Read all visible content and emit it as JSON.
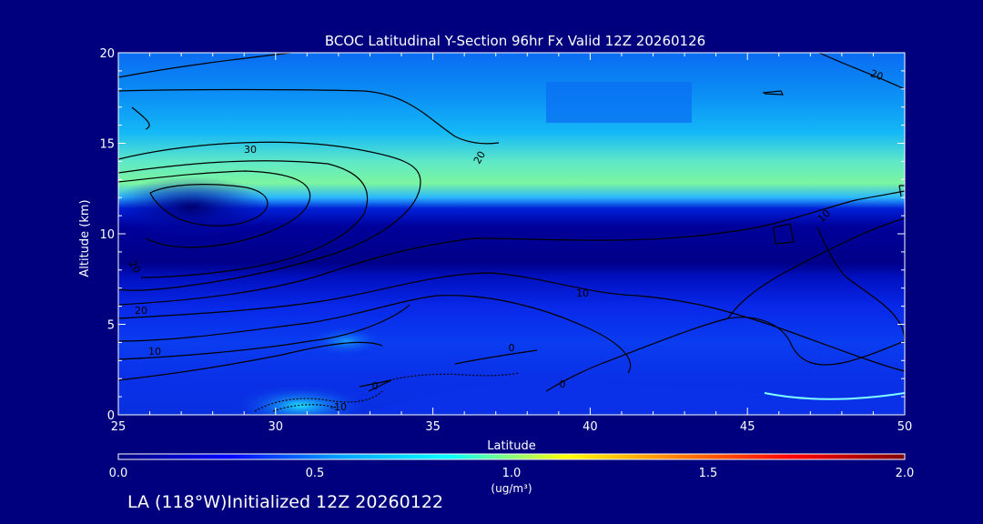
{
  "chart_data": {
    "type": "heatmap",
    "title": "BCOC Latitudinal Y-Section 96hr  Fx Valid 12Z 20260126",
    "xlabel": "Latitude",
    "ylabel": "Altitude (km)",
    "xlim": [
      25,
      50
    ],
    "ylim": [
      0,
      20
    ],
    "x_ticks": [
      "25",
      "30",
      "35",
      "40",
      "45",
      "50"
    ],
    "y_ticks": [
      "0",
      "5",
      "10",
      "15",
      "20"
    ],
    "colorbar": {
      "min": 0.0,
      "max": 2.0,
      "ticks": [
        "0.0",
        "0.5",
        "1.0",
        "1.5",
        "2.0"
      ],
      "label": "(ug/m³)",
      "colors": [
        "#000080",
        "#0000ff",
        "#00a0ff",
        "#00ffff",
        "#ffff00",
        "#ff8000",
        "#ff0000",
        "#800000"
      ]
    },
    "fill_bands": [
      {
        "altitude_km": [
          17.5,
          20
        ],
        "value": 0.5
      },
      {
        "altitude_km": [
          15,
          17.5
        ],
        "value": 0.6
      },
      {
        "altitude_km": [
          12.5,
          15
        ],
        "value": 0.85
      },
      {
        "altitude_km": [
          8,
          12
        ],
        "value": 0.05
      },
      {
        "altitude_km": [
          2,
          8
        ],
        "value": 0.3
      },
      {
        "altitude_km": [
          0,
          2
        ],
        "value": 0.25
      }
    ],
    "contour_labels": [
      "30",
      "20",
      "20",
      "10",
      "10",
      "20",
      "10",
      "0",
      "0",
      "-10",
      "0",
      "10",
      "20"
    ]
  },
  "footer": "LA (118°W)Initialized 12Z 20260122"
}
